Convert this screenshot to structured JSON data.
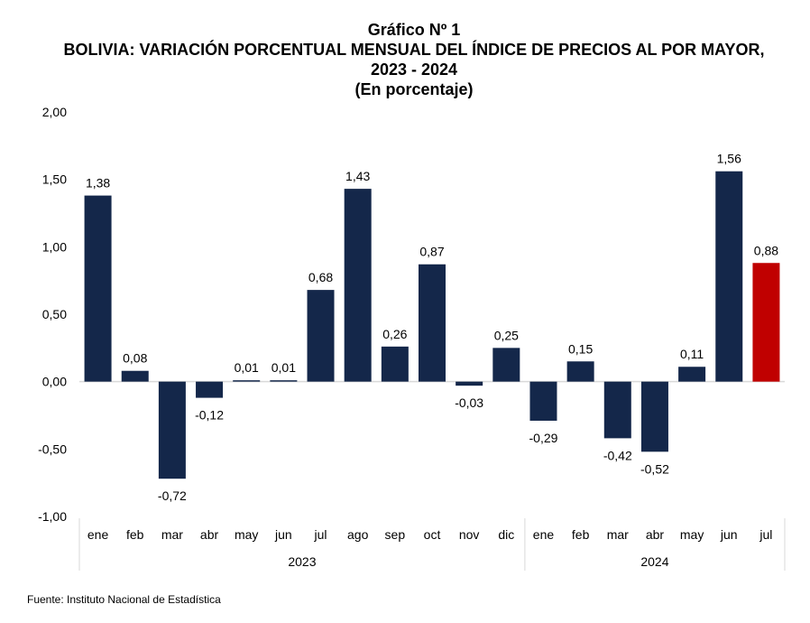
{
  "header": {
    "figure_number": "Gráfico Nº 1",
    "title": "BOLIVIA: VARIACIÓN PORCENTUAL MENSUAL DEL ÍNDICE DE PRECIOS AL POR MAYOR, 2023 - 2024",
    "subtitle": "(En porcentaje)"
  },
  "footer": {
    "source": "Fuente: Instituto Nacional de Estadística"
  },
  "chart_data": {
    "type": "bar",
    "title": "BOLIVIA: VARIACIÓN PORCENTUAL MENSUAL DEL ÍNDICE DE PRECIOS AL POR MAYOR, 2023 - 2024",
    "subtitle": "(En porcentaje)",
    "categories": [
      "ene",
      "feb",
      "mar",
      "abr",
      "may",
      "jun",
      "jul",
      "ago",
      "sep",
      "oct",
      "nov",
      "dic",
      "ene",
      "feb",
      "mar",
      "abr",
      "may",
      "jun",
      "jul"
    ],
    "groups": [
      {
        "label": "2023",
        "start": 0,
        "end": 11
      },
      {
        "label": "2024",
        "start": 12,
        "end": 18
      }
    ],
    "values": [
      1.38,
      0.08,
      -0.72,
      -0.12,
      0.01,
      0.01,
      0.68,
      1.43,
      0.26,
      0.87,
      -0.03,
      0.25,
      -0.29,
      0.15,
      -0.42,
      -0.52,
      0.11,
      1.56,
      0.88
    ],
    "value_labels": [
      "1,38",
      "0,08",
      "-0,72",
      "-0,12",
      "0,01",
      "0,01",
      "0,68",
      "1,43",
      "0,26",
      "0,87",
      "-0,03",
      "0,25",
      "-0,29",
      "0,15",
      "-0,42",
      "-0,52",
      "0,11",
      "1,56",
      "0,88"
    ],
    "highlight_index": 18,
    "ylim": [
      -1.0,
      2.0
    ],
    "yticks": [
      2.0,
      1.5,
      1.0,
      0.5,
      0.0,
      -0.5,
      -1.0
    ],
    "ytick_labels": [
      "2,00",
      "1,50",
      "1,00",
      "0,50",
      "0,00",
      "-0,50",
      "-1,00"
    ],
    "colors": {
      "bar": "#14274a",
      "highlight": "#c00000",
      "axis": "#d9d9d9"
    },
    "grid": false,
    "legend": "none"
  }
}
